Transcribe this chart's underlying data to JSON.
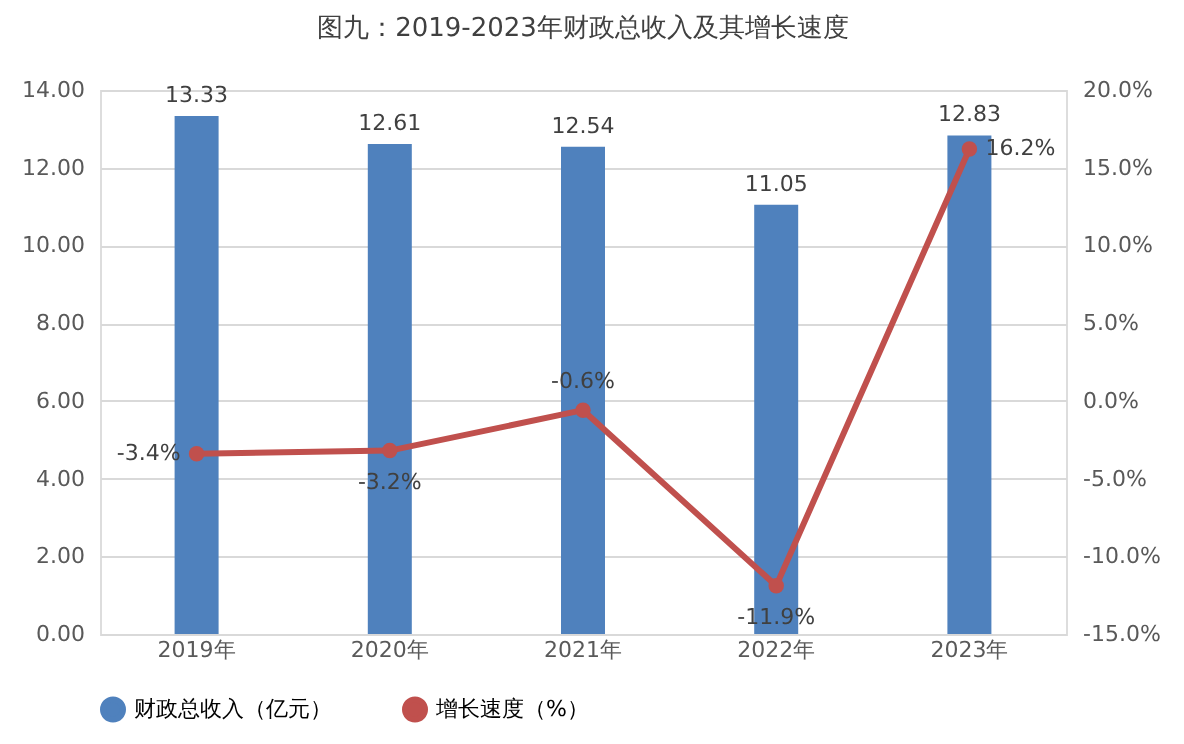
{
  "chart_data": {
    "type": "bar",
    "title": "图九：2019-2023年财政总收入及其增长速度",
    "categories": [
      "2019年",
      "2020年",
      "2021年",
      "2022年",
      "2023年"
    ],
    "series": [
      {
        "name": "财政总收入（亿元）",
        "color": "#4f81bd",
        "values": [
          13.33,
          12.61,
          12.54,
          11.05,
          12.83
        ],
        "value_labels": [
          "13.33",
          "12.61",
          "12.54",
          "11.05",
          "12.83"
        ]
      },
      {
        "name": "增长速度（%）",
        "type": "line",
        "axis": "y2",
        "color": "#c0504d",
        "values": [
          -3.4,
          -3.2,
          -0.6,
          -11.9,
          16.2
        ],
        "value_labels": [
          "-3.4%",
          "-3.2%",
          "-0.6%",
          "-11.9%",
          "16.2%"
        ]
      }
    ],
    "ylim": [
      0,
      14
    ],
    "yticks": [
      {
        "value": 0,
        "label": "0.00"
      },
      {
        "value": 2,
        "label": "2.00"
      },
      {
        "value": 4,
        "label": "4.00"
      },
      {
        "value": 6,
        "label": "6.00"
      },
      {
        "value": 8,
        "label": "8.00"
      },
      {
        "value": 10,
        "label": "10.00"
      },
      {
        "value": 12,
        "label": "12.00"
      },
      {
        "value": 14,
        "label": "14.00"
      }
    ],
    "y2lim": [
      -15,
      20
    ],
    "y2ticks": [
      {
        "value": -15,
        "label": "-15.0%"
      },
      {
        "value": -10,
        "label": "-10.0%"
      },
      {
        "value": -5,
        "label": "-5.0%"
      },
      {
        "value": 0,
        "label": "0.0%"
      },
      {
        "value": 5,
        "label": "5.0%"
      },
      {
        "value": 10,
        "label": "10.0%"
      },
      {
        "value": 15,
        "label": "15.0%"
      },
      {
        "value": 20,
        "label": "20.0%"
      }
    ],
    "grid": "y",
    "legend": "bottom",
    "marker": "circle"
  }
}
